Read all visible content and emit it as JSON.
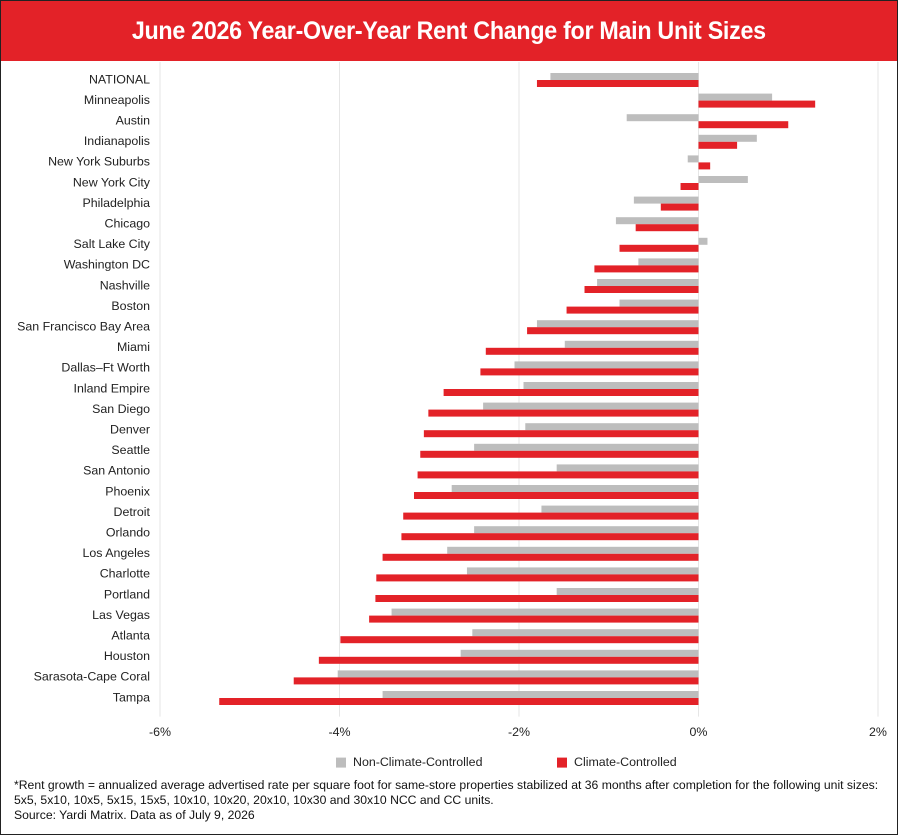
{
  "title": "June 2026 Year-Over-Year Rent Change for Main Unit Sizes",
  "colors": {
    "title_bg": "#e32228",
    "non_climate": "#bdbdbd",
    "climate": "#e32228",
    "grid": "#e6e6e6"
  },
  "chart_data": {
    "type": "bar",
    "orientation": "horizontal",
    "xlim": [
      -6,
      2
    ],
    "x_ticks": [
      "-6%",
      "-4%",
      "-2%",
      "0%",
      "2%"
    ],
    "x_tick_values": [
      -6,
      -4,
      -2,
      0,
      2
    ],
    "grid": true,
    "legend_position": "bottom",
    "categories": [
      "NATIONAL",
      "Minneapolis",
      "Austin",
      "Indianapolis",
      "New York Suburbs",
      "New York City",
      "Philadelphia",
      "Chicago",
      "Salt Lake City",
      "Washington DC",
      "Nashville",
      "Boston",
      "San Francisco Bay Area",
      "Miami",
      "Dallas–Ft Worth",
      "Inland Empire",
      "San Diego",
      "Denver",
      "Seattle",
      "San Antonio",
      "Phoenix",
      "Detroit",
      "Orlando",
      "Los Angeles",
      "Charlotte",
      "Portland",
      "Las Vegas",
      "Atlanta",
      "Houston",
      "Sarasota-Cape Coral",
      "Tampa"
    ],
    "series": [
      {
        "name": "Non-Climate-Controlled",
        "color": "#bdbdbd",
        "values": [
          -1.65,
          0.82,
          -0.8,
          0.65,
          -0.12,
          0.55,
          -0.72,
          -0.92,
          0.1,
          -0.67,
          -1.13,
          -0.88,
          -1.8,
          -1.49,
          -2.05,
          -1.95,
          -2.4,
          -1.93,
          -2.5,
          -1.58,
          -2.75,
          -1.75,
          -2.5,
          -2.8,
          -2.58,
          -1.58,
          -3.42,
          -2.52,
          -2.65,
          -4.02,
          -3.52
        ]
      },
      {
        "name": "Climate-Controlled",
        "color": "#e32228",
        "values": [
          -1.8,
          1.3,
          1.0,
          0.43,
          0.13,
          -0.2,
          -0.42,
          -0.7,
          -0.88,
          -1.16,
          -1.27,
          -1.47,
          -1.91,
          -2.37,
          -2.43,
          -2.84,
          -3.01,
          -3.06,
          -3.1,
          -3.13,
          -3.17,
          -3.29,
          -3.31,
          -3.52,
          -3.59,
          -3.6,
          -3.67,
          -3.99,
          -4.23,
          -4.51,
          -5.34
        ]
      }
    ]
  },
  "footnote": {
    "line1": "*Rent growth = annualized average advertised rate per square foot for same-store properties stabilized at 36 months after completion for the following unit sizes: 5x5, 5x10, 10x5, 5x15, 15x5, 10x10, 10x20, 20x10, 10x30 and 30x10 NCC and CC units.",
    "line2": "Source: Yardi Matrix. Data as of July 9, 2026"
  }
}
